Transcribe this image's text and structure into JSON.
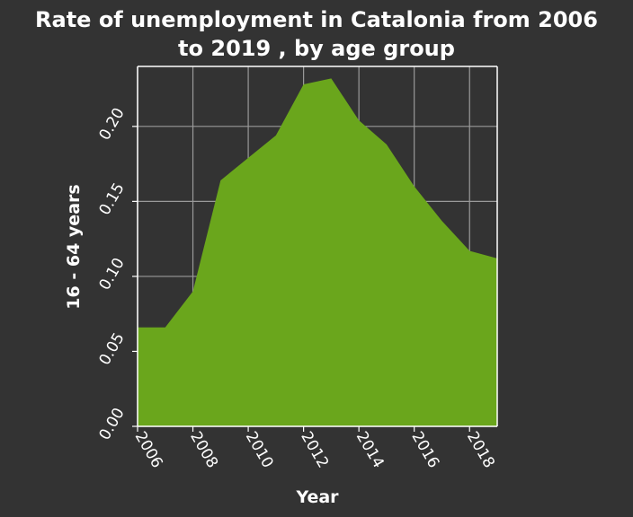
{
  "chart_data": {
    "type": "area",
    "title": "Rate of unemployment in Catalonia from 2006 to 2019 , by age group",
    "title_lines": [
      "Rate of unemployment in Catalonia from 2006",
      "to 2019 , by age group"
    ],
    "xlabel": "Year",
    "ylabel": "16 - 64 years",
    "xlim": [
      2006,
      2019
    ],
    "ylim": [
      0,
      0.24
    ],
    "x_ticks": [
      2006,
      2008,
      2010,
      2012,
      2014,
      2016,
      2018
    ],
    "y_ticks": [
      0.0,
      0.05,
      0.1,
      0.15,
      0.2
    ],
    "y_tick_labels": [
      "0.00",
      "0.05",
      "0.10",
      "0.15",
      "0.20"
    ],
    "grid": true,
    "x": [
      2006,
      2007,
      2008,
      2009,
      2010,
      2011,
      2012,
      2013,
      2014,
      2015,
      2016,
      2017,
      2018,
      2019
    ],
    "values": [
      0.066,
      0.066,
      0.09,
      0.164,
      0.179,
      0.194,
      0.228,
      0.232,
      0.204,
      0.188,
      0.16,
      0.137,
      0.117,
      0.112
    ],
    "colors": {
      "fill": "#6aa61c",
      "background": "#333333",
      "plot_bg": "#333333",
      "grid": "#9a9a9a",
      "text": "#ffffff"
    }
  }
}
